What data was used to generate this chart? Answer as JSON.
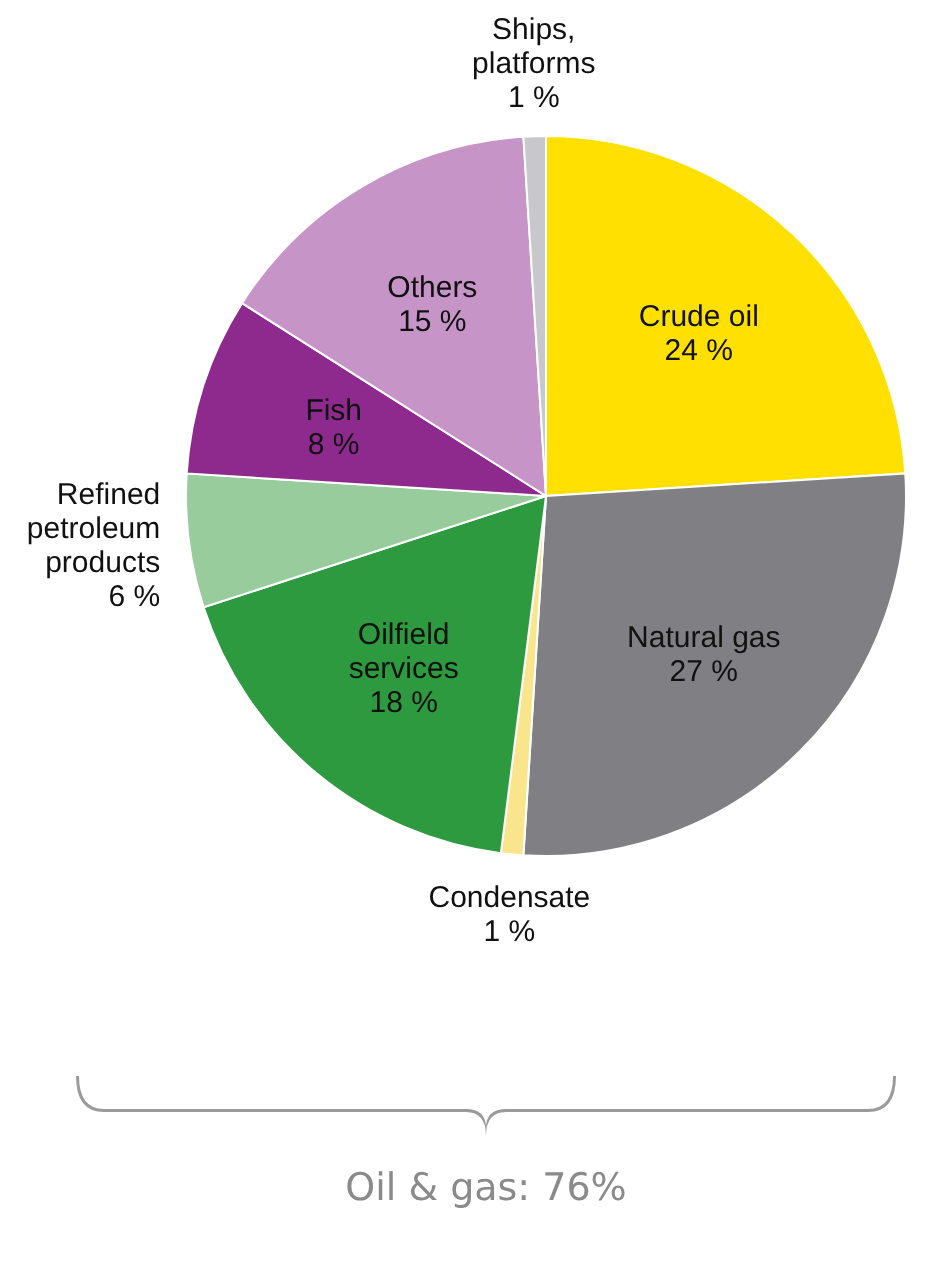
{
  "chart_data": {
    "type": "pie",
    "categories": [
      "Crude oil",
      "Natural gas",
      "Condensate",
      "Oilfield services",
      "Refined petroleum products",
      "Fish",
      "Others",
      "Ships, platforms"
    ],
    "values": [
      24,
      27,
      1,
      18,
      6,
      8,
      15,
      1
    ],
    "value_labels": [
      "24 %",
      "27 %",
      "1 %",
      "18 %",
      "6 %",
      "8 %",
      "15 %",
      "1 %"
    ],
    "colors": [
      "#ffe000",
      "#807f83",
      "#f8e58c",
      "#2e9a40",
      "#98cc9c",
      "#8e2a8e",
      "#c794c7",
      "#c8c8cc"
    ],
    "annotations": [
      "Oil & gas: 76%"
    ]
  }
}
